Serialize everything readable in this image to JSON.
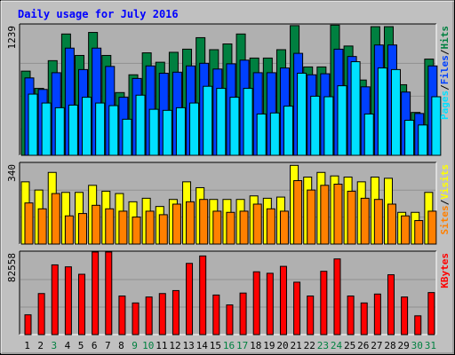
{
  "title": "Daily usage for July 2016",
  "colors": {
    "background": "#c0c0c0",
    "border": "#000000",
    "plot": "#b0b0b0",
    "title": "#0000ff",
    "grid": "#909090",
    "hits": "#008040",
    "files": "#0040ff",
    "pages": "#00e0ff",
    "visits": "#ffff00",
    "sites": "#ff8000",
    "kbytes": "#ff0000",
    "weekday": "#000000",
    "weekend": "#008040"
  },
  "chart_data": [
    {
      "type": "bar",
      "panel": "hits-files-pages",
      "y_max_label": "1239",
      "legend": [
        "Pages",
        "Files",
        "Hits"
      ],
      "legend_separator": "/",
      "ylim": [
        0,
        1239
      ],
      "categories": [
        "1",
        "2",
        "3",
        "4",
        "5",
        "6",
        "7",
        "8",
        "9",
        "10",
        "11",
        "12",
        "13",
        "14",
        "15",
        "16",
        "17",
        "18",
        "19",
        "20",
        "21",
        "22",
        "23",
        "24",
        "25",
        "26",
        "27",
        "28",
        "29",
        "30",
        "31"
      ],
      "series": [
        {
          "name": "Hits",
          "values": [
            805,
            640,
            905,
            1160,
            955,
            1175,
            955,
            600,
            770,
            980,
            890,
            985,
            1015,
            1125,
            1010,
            1065,
            1160,
            930,
            930,
            1010,
            1240,
            845,
            845,
            1245,
            1045,
            720,
            1230,
            1230,
            675,
            410,
            920
          ]
        },
        {
          "name": "Files",
          "values": [
            740,
            630,
            790,
            1025,
            820,
            1025,
            850,
            555,
            735,
            855,
            785,
            795,
            855,
            880,
            825,
            875,
            910,
            790,
            790,
            835,
            975,
            770,
            780,
            1015,
            945,
            655,
            1055,
            1055,
            605,
            400,
            855
          ]
        },
        {
          "name": "Pages",
          "values": [
            585,
            500,
            455,
            480,
            555,
            500,
            475,
            345,
            575,
            440,
            430,
            455,
            500,
            660,
            640,
            555,
            640,
            395,
            405,
            470,
            785,
            565,
            560,
            665,
            895,
            395,
            835,
            820,
            335,
            290,
            560
          ]
        }
      ]
    },
    {
      "type": "bar",
      "panel": "visits-sites",
      "y_max_label": "340",
      "legend": [
        "Sites",
        "Visits"
      ],
      "legend_separator": "/",
      "ylim": [
        0,
        340
      ],
      "categories": [
        "1",
        "2",
        "3",
        "4",
        "5",
        "6",
        "7",
        "8",
        "9",
        "10",
        "11",
        "12",
        "13",
        "14",
        "15",
        "16",
        "17",
        "18",
        "19",
        "20",
        "21",
        "22",
        "23",
        "24",
        "25",
        "26",
        "27",
        "28",
        "29",
        "30",
        "31"
      ],
      "series": [
        {
          "name": "Visits",
          "values": [
            265,
            230,
            305,
            220,
            220,
            250,
            225,
            215,
            180,
            195,
            160,
            190,
            265,
            240,
            190,
            190,
            190,
            205,
            195,
            200,
            335,
            285,
            305,
            290,
            285,
            265,
            285,
            280,
            135,
            135,
            220
          ]
        },
        {
          "name": "Sites",
          "values": [
            175,
            150,
            215,
            120,
            130,
            165,
            150,
            140,
            115,
            140,
            125,
            170,
            180,
            190,
            140,
            135,
            140,
            170,
            150,
            140,
            270,
            230,
            250,
            255,
            225,
            195,
            190,
            170,
            120,
            100,
            140
          ]
        }
      ]
    },
    {
      "type": "bar",
      "panel": "kbytes",
      "y_max_label": "82558",
      "legend": [
        "KBytes"
      ],
      "ylim": [
        0,
        82558
      ],
      "categories": [
        "1",
        "2",
        "3",
        "4",
        "5",
        "6",
        "7",
        "8",
        "9",
        "10",
        "11",
        "12",
        "13",
        "14",
        "15",
        "16",
        "17",
        "18",
        "19",
        "20",
        "21",
        "22",
        "23",
        "24",
        "25",
        "26",
        "27",
        "28",
        "29",
        "30",
        "31"
      ],
      "series": [
        {
          "name": "KBytes",
          "values": [
            20000,
            41500,
            70500,
            68500,
            61000,
            83500,
            83500,
            39000,
            32000,
            38000,
            41500,
            44500,
            72000,
            79500,
            40000,
            30000,
            42000,
            63500,
            62000,
            69000,
            53000,
            39000,
            64000,
            76500,
            39000,
            32000,
            41000,
            60500,
            38000,
            19000,
            42500
          ]
        }
      ]
    }
  ],
  "x_axis": {
    "labels": [
      "1",
      "2",
      "3",
      "4",
      "5",
      "6",
      "7",
      "8",
      "9",
      "10",
      "11",
      "12",
      "13",
      "14",
      "15",
      "16",
      "17",
      "18",
      "19",
      "20",
      "21",
      "22",
      "23",
      "24",
      "25",
      "26",
      "27",
      "28",
      "29",
      "30",
      "31"
    ],
    "weekend": [
      3,
      9,
      10,
      16,
      17,
      23,
      24,
      30,
      31
    ]
  }
}
